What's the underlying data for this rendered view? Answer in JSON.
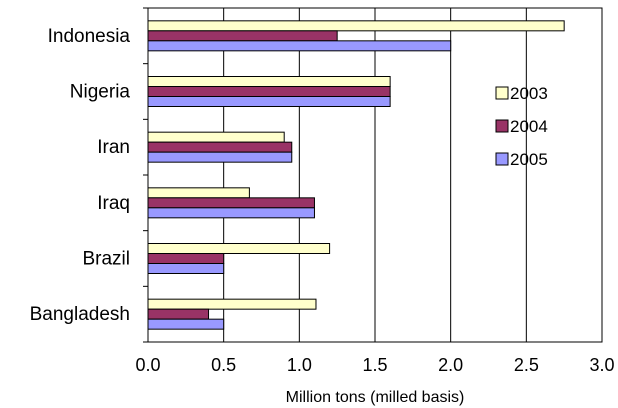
{
  "chart_data": {
    "type": "bar",
    "orientation": "horizontal",
    "title": "",
    "xlabel": "Million tons (milled basis)",
    "ylabel": "",
    "xlim": [
      0,
      3
    ],
    "xticks": [
      "0.0",
      "0.5",
      "1.0",
      "1.5",
      "2.0",
      "2.5",
      "3.0"
    ],
    "grid": "vertical",
    "legend_position": "right",
    "categories": [
      "Indonesia",
      "Nigeria",
      "Iran",
      "Iraq",
      "Brazil",
      "Bangladesh"
    ],
    "series": [
      {
        "name": "2003",
        "color": "#FFFFCC",
        "values": [
          2.75,
          1.6,
          0.9,
          0.67,
          1.2,
          1.11
        ]
      },
      {
        "name": "2004",
        "color": "#993366",
        "values": [
          1.25,
          1.6,
          0.95,
          1.1,
          0.5,
          0.4
        ]
      },
      {
        "name": "2005",
        "color": "#9999FF",
        "values": [
          2.0,
          1.6,
          0.95,
          1.1,
          0.5,
          0.5
        ]
      }
    ]
  }
}
